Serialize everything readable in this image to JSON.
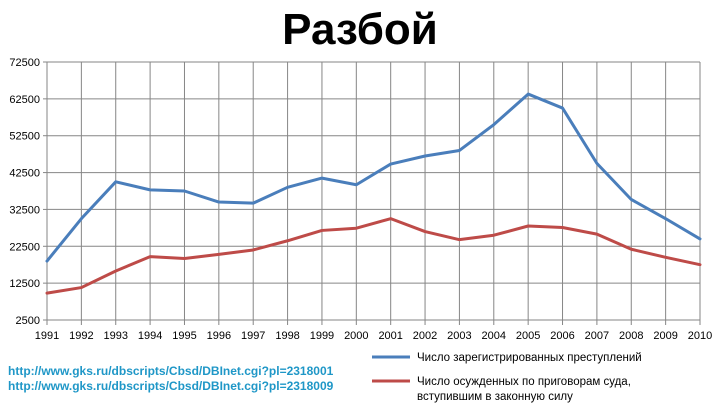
{
  "chart_data": {
    "type": "line",
    "title": "Разбой",
    "x": [
      "1991",
      "1992",
      "1993",
      "1994",
      "1995",
      "1996",
      "1997",
      "1998",
      "1999",
      "2000",
      "2001",
      "2002",
      "2003",
      "2004",
      "2005",
      "2006",
      "2007",
      "2008",
      "2009",
      "2010"
    ],
    "yticks": [
      "2500",
      "12500",
      "22500",
      "32500",
      "42500",
      "52500",
      "62500",
      "72500"
    ],
    "ylim": [
      2500,
      72500
    ],
    "grid": true,
    "legend_position": "bottom-right",
    "series": [
      {
        "name": "Число зарегистрированных преступлений",
        "color": "#4a7ebb",
        "values": [
          18500,
          30000,
          40000,
          37800,
          37500,
          34500,
          34200,
          38500,
          41000,
          39200,
          44800,
          47000,
          48500,
          55500,
          63800,
          60000,
          45000,
          35200,
          30000,
          24500
        ]
      },
      {
        "name": "Число осужденных по приговорам суда, вступившим  в законную силу",
        "name_lines": [
          "Число осужденных по приговорам суда,",
          "вступившим  в законную силу"
        ],
        "color": "#be4b48",
        "values": [
          9800,
          11300,
          15800,
          19700,
          19200,
          20300,
          21500,
          24000,
          26800,
          27400,
          30000,
          26500,
          24300,
          25500,
          28000,
          27600,
          25800,
          21700,
          19500,
          17500
        ]
      }
    ],
    "source_links": [
      "http://www.gks.ru/dbscripts/Cbsd/DBInet.cgi?pl=2318001",
      "http://www.gks.ru/dbscripts/Cbsd/DBInet.cgi?pl=2318009"
    ]
  }
}
